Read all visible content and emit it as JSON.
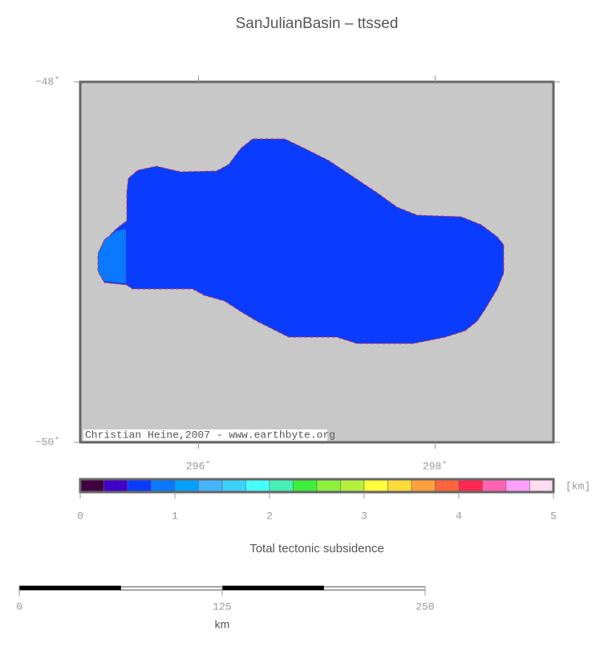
{
  "map": {
    "title": "SanJulianBasin – ttssed",
    "lonlim": [
      295,
      299
    ],
    "latlim": [
      -50,
      -48
    ],
    "lonticks": [
      {
        "value": 296,
        "label": "296˚"
      },
      {
        "value": 298,
        "label": "298˚"
      }
    ],
    "latticks": [
      {
        "value": -48,
        "label": "−48˚"
      },
      {
        "value": -50,
        "label": "−50˚"
      }
    ],
    "credit": "Christian Heine,2007 - www.earthbyte.org"
  },
  "colorbar": {
    "colors": [
      "#41003f",
      "#4000c8",
      "#0a3cff",
      "#0a78ff",
      "#00a0ff",
      "#46b4ff",
      "#3cd2ff",
      "#46ffff",
      "#46f0b4",
      "#3cf03c",
      "#8cf03c",
      "#b4f03c",
      "#ffff3c",
      "#ffdc3c",
      "#ffa03c",
      "#ff643c",
      "#ff2850",
      "#ff64b4",
      "#ffa0ff",
      "#ffdcf0"
    ],
    "lim": [
      0,
      5
    ],
    "ticks": [
      0,
      1,
      2,
      3,
      4,
      5
    ],
    "unit": "[km]",
    "label": "Total tectonic subsidence"
  },
  "scalebar": {
    "ticks": [
      0,
      125,
      250
    ],
    "unit": "km"
  }
}
